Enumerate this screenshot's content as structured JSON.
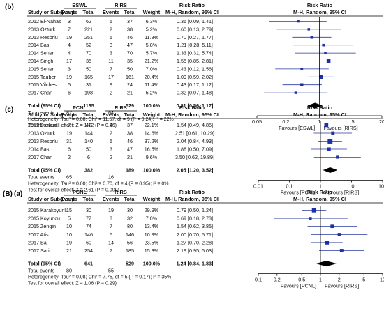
{
  "chart_data": [
    {
      "type": "forest",
      "panel_label": "(b)",
      "group1": "ESWL",
      "group2": "RIRS",
      "headers": [
        "Study or Subgroup",
        "Events",
        "Total",
        "Events",
        "Total",
        "Weight",
        "Risk Ratio",
        "Risk Ratio"
      ],
      "subheaders": [
        "M-H, Random, 95% CI",
        "M-H, Random, 95% CI"
      ],
      "studies": [
        {
          "name": "2012 El-Nahas",
          "e1": "3",
          "t1": "62",
          "e2": "5",
          "t2": "37",
          "weight": "6.3%",
          "ci_text": "0.36 [0.09, 1.41]",
          "rr": 0.36,
          "lo": 0.09,
          "hi": 1.41
        },
        {
          "name": "2013 Ozturk",
          "e1": "7",
          "t1": "221",
          "e2": "2",
          "t2": "38",
          "weight": "5.2%",
          "ci_text": "0.60 [0.13, 2.79]",
          "rr": 0.6,
          "lo": 0.13,
          "hi": 2.79
        },
        {
          "name": "2013 Resorlu",
          "e1": "19",
          "t1": "251",
          "e2": "5",
          "t2": "46",
          "weight": "11.8%",
          "ci_text": "0.70 [0.27, 1.77]",
          "rr": 0.7,
          "lo": 0.27,
          "hi": 1.77
        },
        {
          "name": "2014 Bas",
          "e1": "4",
          "t1": "52",
          "e2": "3",
          "t2": "47",
          "weight": "5.8%",
          "ci_text": "1.21 [0.28, 5.11]",
          "rr": 1.21,
          "lo": 0.28,
          "hi": 5.11
        },
        {
          "name": "2014 Sener",
          "e1": "4",
          "t1": "70",
          "e2": "3",
          "t2": "70",
          "weight": "5.7%",
          "ci_text": "1.33 [0.31, 5.74]",
          "rr": 1.33,
          "lo": 0.31,
          "hi": 5.74
        },
        {
          "name": "2014 Singh",
          "e1": "17",
          "t1": "35",
          "e2": "11",
          "t2": "35",
          "weight": "21.2%",
          "ci_text": "1.55 [0.85, 2.81]",
          "rr": 1.55,
          "lo": 0.85,
          "hi": 2.81
        },
        {
          "name": "2015 Sener",
          "e1": "3",
          "t1": "50",
          "e2": "7",
          "t2": "50",
          "weight": "7.0%",
          "ci_text": "0.43 [0.12, 1.56]",
          "rr": 0.43,
          "lo": 0.12,
          "hi": 1.56
        },
        {
          "name": "2015 Tauber",
          "e1": "19",
          "t1": "165",
          "e2": "17",
          "t2": "161",
          "weight": "20.4%",
          "ci_text": "1.09 [0.59, 2.02]",
          "rr": 1.09,
          "lo": 0.59,
          "hi": 2.02
        },
        {
          "name": "2015 Vilches",
          "e1": "5",
          "t1": "31",
          "e2": "9",
          "t2": "24",
          "weight": "11.4%",
          "ci_text": "0.43 [0.17, 1.12]",
          "rr": 0.43,
          "lo": 0.17,
          "hi": 1.12
        },
        {
          "name": "2017 Chan",
          "e1": "6",
          "t1": "198",
          "e2": "2",
          "t2": "21",
          "weight": "5.2%",
          "ci_text": "0.32 [0.07, 1.48]",
          "rr": 0.32,
          "lo": 0.07,
          "hi": 1.48
        }
      ],
      "total": {
        "name": "Total (95% CI)",
        "t1": "1135",
        "t2": "529",
        "weight": "100.0%",
        "ci_text": "0.81 [0.56, 1.17]",
        "rr": 0.81,
        "lo": 0.56,
        "hi": 1.17
      },
      "total_events": {
        "name": "Total events",
        "e1": "87",
        "e2": "64"
      },
      "heterogeneity": "Heterogeneity: Tau² = 0.08; Chi² = 11.57, df = 9 (P = 0.24); I² = 22%",
      "overall_effect": "Test for overall effect: Z = 1.12 (P = 0.26)",
      "axis": {
        "scale": "log",
        "min": 0.05,
        "max": 20,
        "ticks": [
          {
            "v": 0.05,
            "label": "0.05"
          },
          {
            "v": 0.2,
            "label": "0.2"
          },
          {
            "v": 1,
            "label": "1"
          },
          {
            "v": 5,
            "label": "5"
          },
          {
            "v": 20,
            "label": "20"
          }
        ]
      },
      "favours_left": "Favours [ESWL]",
      "favours_right": "Favours [RIRS]"
    },
    {
      "type": "forest",
      "panel_label": "(c)",
      "group1": "PCNL",
      "group2": "RIRS",
      "headers": [
        "Study or Subgroup",
        "Events",
        "Total",
        "Events",
        "Total",
        "Weight",
        "Risk Ratio",
        "Risk Ratio"
      ],
      "subheaders": [
        "M-H, Random, 95% CI",
        "M-H, Random, 95% CI"
      ],
      "studies": [
        {
          "name": "2011 Bozkurt",
          "e1": "7",
          "t1": "42",
          "e2": "4",
          "t2": "37",
          "weight": "22.1%",
          "ci_text": "1.54 [0.49, 4.85]",
          "rr": 1.54,
          "lo": 0.49,
          "hi": 4.85
        },
        {
          "name": "2013 Ozturk",
          "e1": "19",
          "t1": "144",
          "e2": "2",
          "t2": "38",
          "weight": "14.6%",
          "ci_text": "2.51 [0.61, 10.29]",
          "rr": 2.51,
          "lo": 0.61,
          "hi": 10.29
        },
        {
          "name": "2013 Resorlu",
          "e1": "31",
          "t1": "140",
          "e2": "5",
          "t2": "46",
          "weight": "37.2%",
          "ci_text": "2.04 [0.84, 4.93]",
          "rr": 2.04,
          "lo": 0.84,
          "hi": 4.93
        },
        {
          "name": "2014 Bas",
          "e1": "6",
          "t1": "50",
          "e2": "3",
          "t2": "47",
          "weight": "16.5%",
          "ci_text": "1.88 [0.50, 7.09]",
          "rr": 1.88,
          "lo": 0.5,
          "hi": 7.09
        },
        {
          "name": "2017 Chan",
          "e1": "2",
          "t1": "6",
          "e2": "2",
          "t2": "21",
          "weight": "9.6%",
          "ci_text": "3.50 [0.62, 19.89]",
          "rr": 3.5,
          "lo": 0.62,
          "hi": 19.89
        }
      ],
      "total": {
        "name": "Total (95% CI)",
        "t1": "382",
        "t2": "189",
        "weight": "100.0%",
        "ci_text": "2.05 [1.20, 3.52]",
        "rr": 2.05,
        "lo": 1.2,
        "hi": 3.52
      },
      "total_events": {
        "name": "Total events",
        "e1": "65",
        "e2": "16"
      },
      "heterogeneity": "Heterogeneity: Tau² = 0.00; Chi² = 0.70, df = 4 (P = 0.95); I² = 0%",
      "overall_effect": "Test for overall effect: Z = 2.61 (P = 0.009)",
      "axis": {
        "scale": "log",
        "min": 0.01,
        "max": 100,
        "ticks": [
          {
            "v": 0.01,
            "label": "0.01"
          },
          {
            "v": 0.1,
            "label": "0.1"
          },
          {
            "v": 1,
            "label": "1"
          },
          {
            "v": 10,
            "label": "10"
          },
          {
            "v": 100,
            "label": "100"
          }
        ]
      },
      "favours_left": "Favours [PCNL]",
      "favours_right": "Favours [RIRS]"
    },
    {
      "type": "forest",
      "outer_label": "(B)",
      "panel_label": "(a)",
      "group1": "PCNL",
      "group2": "RIRS",
      "headers": [
        "Study or Subgroup",
        "Events",
        "Total",
        "Events",
        "Total",
        "Weight",
        "Risk Ratio",
        "Risk Ratio"
      ],
      "subheaders": [
        "M-H, Random, 95% CI",
        "M-H, Random, 95% CI"
      ],
      "studies": [
        {
          "name": "2015 Karakoyunlu",
          "e1": "15",
          "t1": "30",
          "e2": "19",
          "t2": "30",
          "weight": "29.9%",
          "ci_text": "0.79 [0.50, 1.24]",
          "rr": 0.79,
          "lo": 0.5,
          "hi": 1.24
        },
        {
          "name": "2015 Koyuncu",
          "e1": "5",
          "t1": "77",
          "e2": "3",
          "t2": "32",
          "weight": "7.0%",
          "ci_text": "0.69 [0.18, 2.73]",
          "rr": 0.69,
          "lo": 0.18,
          "hi": 2.73
        },
        {
          "name": "2015 Zengin",
          "e1": "10",
          "t1": "74",
          "e2": "7",
          "t2": "80",
          "weight": "13.4%",
          "ci_text": "1.54 [0.62, 3.85]",
          "rr": 1.54,
          "lo": 0.62,
          "hi": 3.85
        },
        {
          "name": "2017 Atis",
          "e1": "10",
          "t1": "146",
          "e2": "5",
          "t2": "146",
          "weight": "10.9%",
          "ci_text": "2.00 [0.70, 5.71]",
          "rr": 2.0,
          "lo": 0.7,
          "hi": 5.71
        },
        {
          "name": "2017 Bai",
          "e1": "19",
          "t1": "60",
          "e2": "14",
          "t2": "56",
          "weight": "23.5%",
          "ci_text": "1.27 [0.70, 2.28]",
          "rr": 1.27,
          "lo": 0.7,
          "hi": 2.28
        },
        {
          "name": "2017 Sari",
          "e1": "21",
          "t1": "254",
          "e2": "7",
          "t2": "185",
          "weight": "15.3%",
          "ci_text": "2.19 [0.95, 5.03]",
          "rr": 2.19,
          "lo": 0.95,
          "hi": 5.03
        }
      ],
      "total": {
        "name": "Total (95% CI)",
        "t1": "641",
        "t2": "529",
        "weight": "100.0%",
        "ci_text": "1.24 [0.84, 1.83]",
        "rr": 1.24,
        "lo": 0.84,
        "hi": 1.83
      },
      "total_events": {
        "name": "Total events",
        "e1": "80",
        "e2": "55"
      },
      "heterogeneity": "Heterogeneity: Tau² = 0.08; Chi² = 7.75, df = 5 (P = 0.17); I² = 35%",
      "overall_effect": "Test for overall effect: Z = 1.06 (P = 0.29)",
      "axis": {
        "scale": "log",
        "min": 0.1,
        "max": 10,
        "ticks": [
          {
            "v": 0.1,
            "label": "0.1"
          },
          {
            "v": 0.2,
            "label": "0.2"
          },
          {
            "v": 0.5,
            "label": "0.5"
          },
          {
            "v": 1,
            "label": "1"
          },
          {
            "v": 2,
            "label": "2"
          },
          {
            "v": 5,
            "label": "5"
          },
          {
            "v": 10,
            "label": "10"
          }
        ]
      },
      "favours_left": "Favours [PCNL]",
      "favours_right": "Favours [RIRS]"
    }
  ],
  "colors": {
    "point": "#1f2fa6",
    "ci_line": "#2a3a9e",
    "text": "#111111"
  }
}
